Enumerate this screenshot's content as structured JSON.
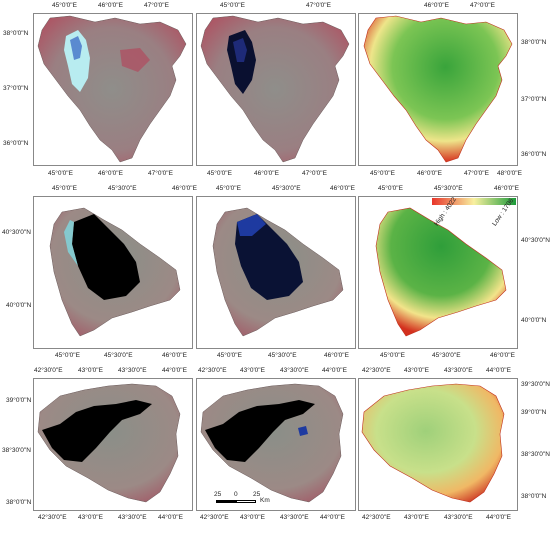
{
  "rows": [
    {
      "top_labels": [
        "45°0'0\"E",
        "46°0'0\"E",
        "47°0'0\"E"
      ],
      "bottom_labels": [
        "45°0'0\"E",
        "46°0'0\"E",
        "47°0'0\"E",
        "48°0'0\"E"
      ],
      "left_labels": [
        "38°0'0\"N",
        "37°0'0\"N",
        "36°0'0\"N"
      ],
      "right_labels": [
        "38°0'0\"N",
        "37°0'0\"N",
        "36°0'0\"N"
      ]
    },
    {
      "top_labels": [
        "45°0'0\"E",
        "45°30'0\"E",
        "46°0'0\"E"
      ],
      "bottom_labels": [
        "45°0'0\"E",
        "45°30'0\"E",
        "46°0'0\"E"
      ],
      "left_labels": [
        "40°30'0\"N",
        "40°0'0\"N"
      ],
      "right_labels": [
        "40°30'0\"N",
        "40°0'0\"N"
      ]
    },
    {
      "top_labels": [
        "42°30'0\"E",
        "43°0'0\"E",
        "43°30'0\"E",
        "44°0'0\"E"
      ],
      "bottom_labels": [
        "42°30'0\"E",
        "43°0'0\"E",
        "43°30'0\"E",
        "44°0'0\"E"
      ],
      "left_labels": [
        "39°0'0\"N",
        "38°30'0\"N",
        "38°0'0\"N"
      ],
      "right_labels": [
        "39°30'0\"N",
        "39°0'0\"N",
        "38°30'0\"N",
        "38°0'0\"N"
      ]
    }
  ],
  "legend": {
    "high_label": "High : 4022",
    "low_label": "Low : 1706",
    "high_color": "#e8352a",
    "low_color": "#1a9a38"
  },
  "scalebar": {
    "labels": [
      "25",
      "0",
      "25"
    ],
    "unit": "Km"
  },
  "colors": {
    "false_color_base": "#8e8a86",
    "false_color_red": "#b8465a",
    "lake_black": "#000000",
    "lake_blue": "#1e2a78",
    "salt_cyan": "#7fd8e0",
    "dem_high": "#d8301f",
    "dem_mid": "#f6e88a",
    "dem_low": "#3aa63c"
  }
}
